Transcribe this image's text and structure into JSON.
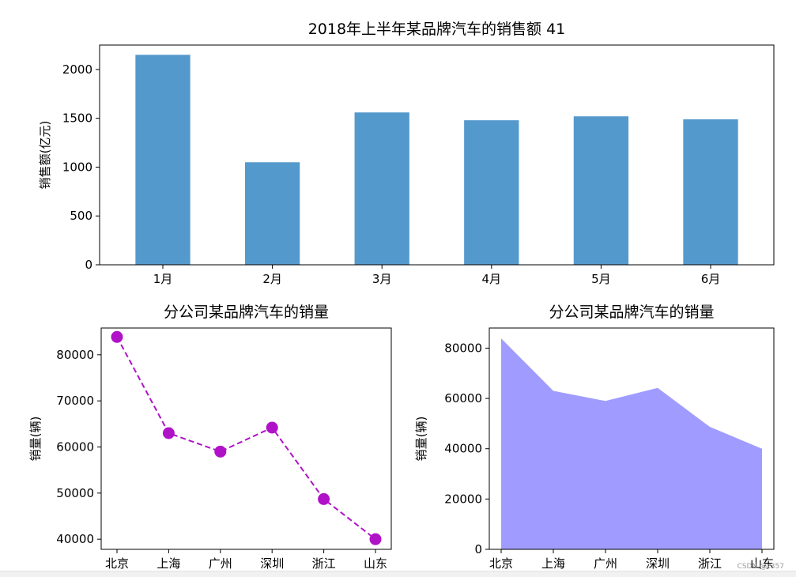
{
  "watermark": "CSDN @z357",
  "chart_data": [
    {
      "type": "bar",
      "title": "2018年上半年某品牌汽车的销售额   41",
      "ylabel": "销售额(亿元)",
      "categories": [
        "1月",
        "2月",
        "3月",
        "4月",
        "5月",
        "6月"
      ],
      "values": [
        2150,
        1050,
        1560,
        1480,
        1520,
        1490
      ],
      "ylim": [
        0,
        2250
      ],
      "yticks": [
        0,
        500,
        1000,
        1500,
        2000
      ],
      "color": "#5499cc",
      "grid": false
    },
    {
      "type": "line",
      "title": "分公司某品牌汽车的销量",
      "ylabel": "销量(辆)",
      "categories": [
        "北京",
        "上海",
        "广州",
        "深圳",
        "浙江",
        "山东"
      ],
      "values": [
        83866,
        63000,
        59000,
        64200,
        48700,
        40000
      ],
      "ylim": [
        37800,
        85800
      ],
      "yticks": [
        40000,
        50000,
        60000,
        70000,
        80000
      ],
      "color": "#b012c8",
      "line_style": "dashed",
      "marker": "circle",
      "grid": false
    },
    {
      "type": "area",
      "title": "分公司某品牌汽车的销量",
      "ylabel": "销量(辆)",
      "categories": [
        "北京",
        "上海",
        "广州",
        "深圳",
        "浙江",
        "山东"
      ],
      "values": [
        83866,
        63000,
        59000,
        64200,
        48700,
        40000
      ],
      "ylim": [
        0,
        88000
      ],
      "yticks": [
        0,
        20000,
        40000,
        60000,
        80000
      ],
      "color": "#a09cff",
      "grid": false
    }
  ]
}
